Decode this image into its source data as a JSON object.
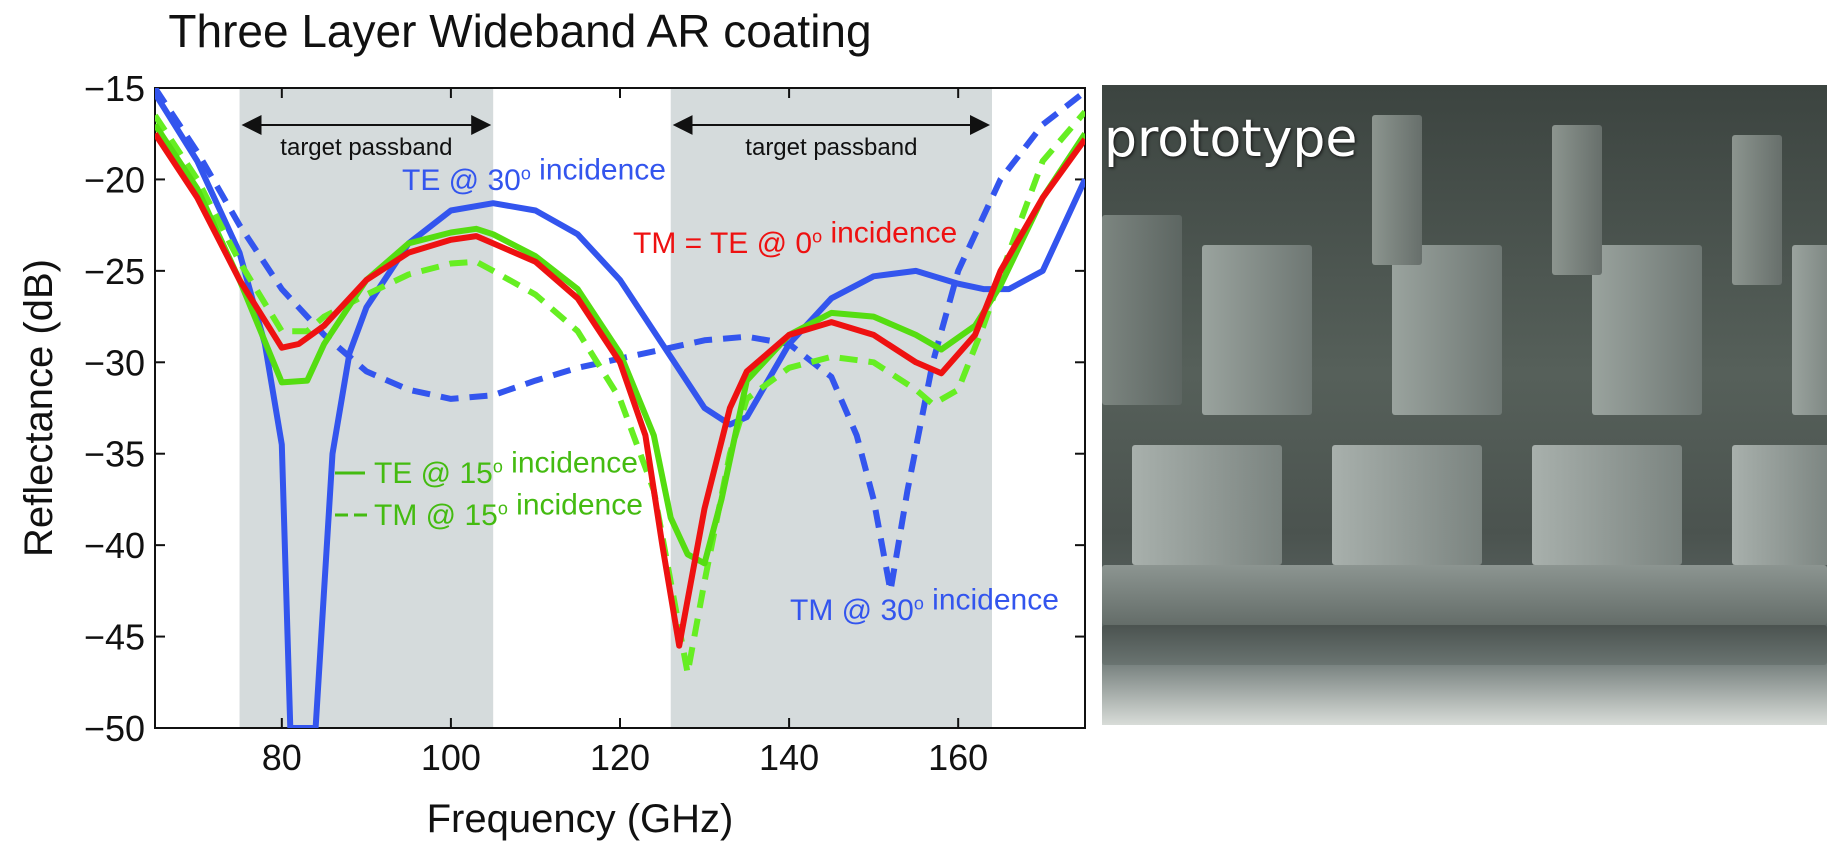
{
  "chart_data": {
    "type": "line",
    "title": "Three Layer Wideband AR coating",
    "xlabel": "Frequency (GHz)",
    "ylabel": "Reflectance (dB)",
    "xlim": [
      65,
      175
    ],
    "ylim": [
      -50,
      -15
    ],
    "xticks": [
      80,
      100,
      120,
      140,
      160
    ],
    "yticks": [
      -15,
      -20,
      -25,
      -30,
      -35,
      -40,
      -45,
      -50
    ],
    "xtick_labels": [
      "80",
      "100",
      "120",
      "140",
      "160"
    ],
    "ytick_labels": [
      "−15",
      "−20",
      "−25",
      "−30",
      "−35",
      "−40",
      "−45",
      "−50"
    ],
    "passbands": [
      {
        "label": "target passband",
        "range": [
          75,
          105
        ]
      },
      {
        "label": "target passband",
        "range": [
          126,
          164
        ]
      }
    ],
    "series": [
      {
        "name": "TE @ 30° incidence",
        "color": "#3355ee",
        "dash": "solid",
        "x": [
          65,
          70,
          75,
          78,
          80,
          81,
          83,
          84,
          86,
          88,
          90,
          95,
          100,
          105,
          110,
          115,
          120,
          125,
          130,
          133,
          135,
          140,
          145,
          150,
          155,
          160,
          163,
          166,
          170,
          175
        ],
        "y": [
          -15.3,
          -19,
          -24,
          -29,
          -34.5,
          -50,
          -50,
          -50,
          -35,
          -29.5,
          -27,
          -23.5,
          -21.7,
          -21.3,
          -21.7,
          -23,
          -25.5,
          -29,
          -32.5,
          -33.4,
          -33,
          -29,
          -26.5,
          -25.3,
          -25,
          -25.7,
          -26,
          -26,
          -25,
          -20
        ]
      },
      {
        "name": "TM @ 30° incidence",
        "color": "#3355ee",
        "dash": "dashed",
        "x": [
          65,
          70,
          75,
          80,
          85,
          90,
          95,
          100,
          105,
          110,
          115,
          120,
          125,
          130,
          135,
          140,
          145,
          148,
          150,
          152,
          154,
          157,
          160,
          165,
          170,
          175
        ],
        "y": [
          -15,
          -18.5,
          -22.5,
          -26,
          -28.5,
          -30.5,
          -31.5,
          -32,
          -31.8,
          -31,
          -30.3,
          -29.8,
          -29.3,
          -28.8,
          -28.6,
          -29,
          -30.8,
          -34,
          -37.5,
          -42.5,
          -37,
          -30,
          -25,
          -20,
          -17,
          -15.2
        ]
      },
      {
        "name": "TM = TE @ 0° incidence",
        "color": "#ee1111",
        "dash": "solid",
        "x": [
          65,
          70,
          75,
          80,
          82,
          85,
          90,
          95,
          100,
          103,
          105,
          110,
          115,
          120,
          123,
          125,
          127,
          128,
          130,
          133,
          135,
          140,
          145,
          150,
          155,
          158,
          162,
          165,
          170,
          175
        ],
        "y": [
          -17.5,
          -21,
          -25.5,
          -29.2,
          -29,
          -28,
          -25.5,
          -24,
          -23.3,
          -23.1,
          -23.5,
          -24.5,
          -26.5,
          -30,
          -34,
          -40,
          -45.5,
          -43,
          -38,
          -32.5,
          -30.5,
          -28.5,
          -27.8,
          -28.5,
          -30,
          -30.6,
          -28.5,
          -25,
          -21,
          -17.8
        ]
      },
      {
        "name": "TE @ 15° incidence",
        "color": "#55dd11",
        "dash": "solid",
        "x": [
          65,
          70,
          75,
          80,
          83,
          85,
          90,
          95,
          100,
          103,
          105,
          110,
          115,
          120,
          124,
          126,
          128,
          130,
          132,
          135,
          140,
          145,
          150,
          155,
          158,
          162,
          165,
          170,
          175
        ],
        "y": [
          -17,
          -20.5,
          -25.5,
          -31.1,
          -31,
          -29,
          -25.5,
          -23.5,
          -22.9,
          -22.7,
          -23,
          -24.2,
          -26,
          -29.5,
          -34,
          -38.5,
          -40.5,
          -41,
          -37.5,
          -31,
          -28.5,
          -27.3,
          -27.5,
          -28.5,
          -29.3,
          -28,
          -25.8,
          -21,
          -17.5
        ]
      },
      {
        "name": "TM @ 15° incidence",
        "color": "#66ee22",
        "dash": "dashed",
        "x": [
          65,
          70,
          75,
          80,
          83,
          85,
          90,
          95,
          100,
          103,
          105,
          110,
          115,
          120,
          124,
          126,
          128,
          130,
          133,
          135,
          140,
          145,
          150,
          155,
          157,
          160,
          163,
          166,
          170,
          175
        ],
        "y": [
          -16.5,
          -20,
          -24.5,
          -28.3,
          -28.3,
          -27.5,
          -26.3,
          -25.2,
          -24.6,
          -24.5,
          -25,
          -26.3,
          -28.3,
          -32,
          -37,
          -42,
          -47,
          -42,
          -35,
          -32,
          -30.3,
          -29.7,
          -30,
          -31.5,
          -32.3,
          -31.5,
          -28,
          -24,
          -19,
          -16.3
        ]
      }
    ],
    "annotations": [
      {
        "text": "TE @ 30° incidence",
        "color": "#3355ee"
      },
      {
        "text": "TM = TE  @ 0° incidence",
        "color": "#ee1111"
      },
      {
        "text": "TE @ 15° incidence",
        "color": "#44bb11",
        "marker": "solid"
      },
      {
        "text": "TM @ 15° incidence",
        "color": "#44bb11",
        "marker": "dashed"
      },
      {
        "text": "TM @ 30° incidence",
        "color": "#3355ee"
      }
    ]
  },
  "photo": {
    "label": "prototype"
  }
}
